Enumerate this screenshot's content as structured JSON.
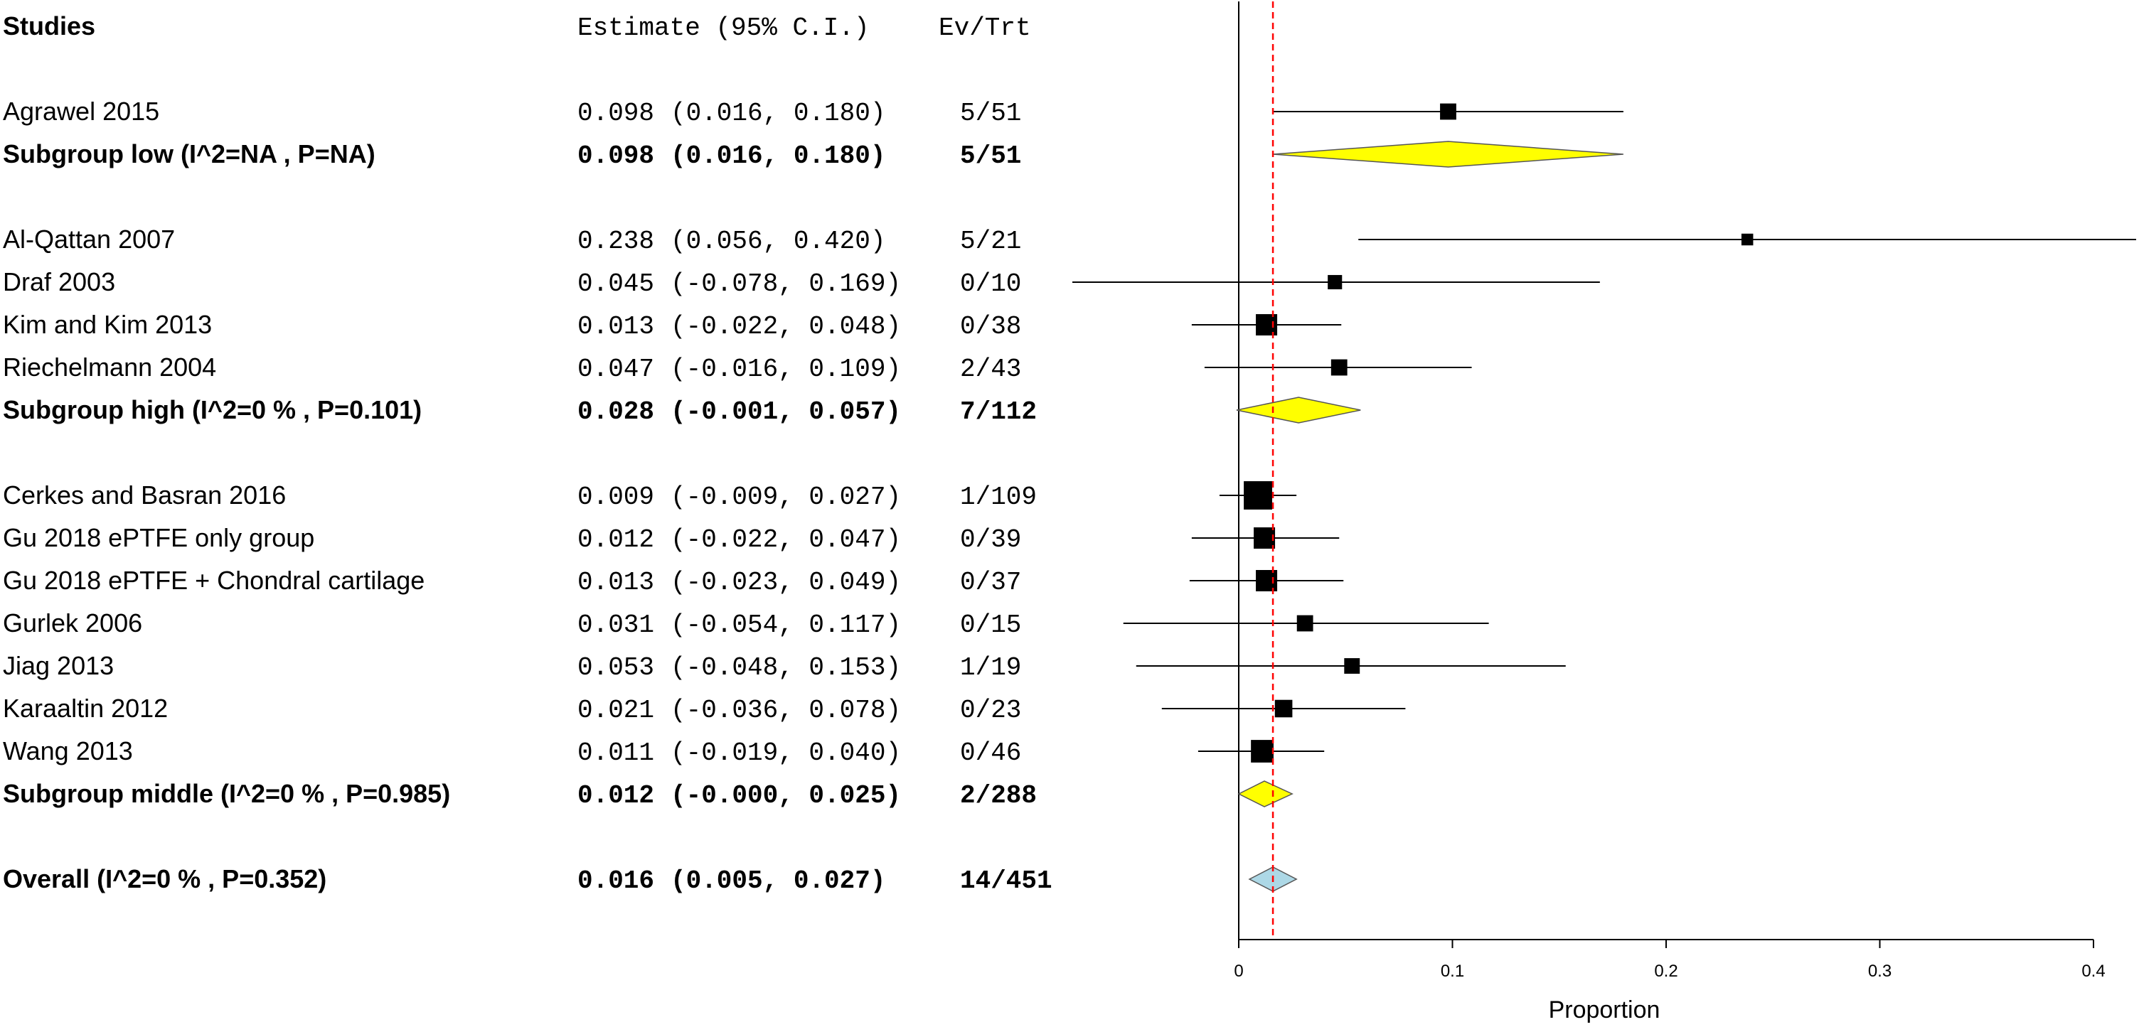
{
  "chart_data": {
    "type": "forest",
    "xlabel": "Proportion",
    "xlim": [
      0,
      0.4
    ],
    "x_ticks": [
      "0",
      "0.1",
      "0.2",
      "0.3",
      "0.4"
    ],
    "reference_line": 0.016,
    "headers": {
      "studies": "Studies",
      "estimate": "Estimate (95% C.I.)",
      "events": "Ev/Trt"
    },
    "rows": [
      {
        "kind": "study",
        "label": "Agrawel 2015",
        "est": 0.098,
        "lo": 0.016,
        "hi": 0.18,
        "est_text": "0.098",
        "ci_text": "(0.016, 0.180)",
        "ev_trt": "5/51",
        "weight": 0.6
      },
      {
        "kind": "subgroup",
        "label": "Subgroup low (I^2=NA , P=NA)",
        "est": 0.098,
        "lo": 0.016,
        "hi": 0.18,
        "est_text": "0.098",
        "ci_text": "(0.016, 0.180)",
        "ev_trt": "5/51"
      },
      {
        "kind": "blank"
      },
      {
        "kind": "study",
        "label": "Al-Qattan 2007",
        "est": 0.238,
        "lo": 0.056,
        "hi": 0.42,
        "est_text": "0.238",
        "ci_text": "(0.056, 0.420)",
        "ev_trt": "5/21",
        "weight": 0.25
      },
      {
        "kind": "study",
        "label": "Draf 2003",
        "est": 0.045,
        "lo": -0.078,
        "hi": 0.169,
        "est_text": "0.045",
        "ci_text": "(-0.078, 0.169)",
        "ev_trt": "0/10",
        "weight": 0.45
      },
      {
        "kind": "study",
        "label": "Kim and Kim 2013",
        "est": 0.013,
        "lo": -0.022,
        "hi": 0.048,
        "est_text": "0.013",
        "ci_text": "(-0.022, 0.048)",
        "ev_trt": "0/38",
        "weight": 1.0
      },
      {
        "kind": "study",
        "label": "Riechelmann 2004",
        "est": 0.047,
        "lo": -0.016,
        "hi": 0.109,
        "est_text": "0.047",
        "ci_text": "(-0.016, 0.109)",
        "ev_trt": "2/43",
        "weight": 0.6
      },
      {
        "kind": "subgroup",
        "label": "Subgroup high (I^2=0 % , P=0.101)",
        "est": 0.028,
        "lo": -0.001,
        "hi": 0.057,
        "est_text": "0.028",
        "ci_text": "(-0.001, 0.057)",
        "ev_trt": "7/112"
      },
      {
        "kind": "blank"
      },
      {
        "kind": "study",
        "label": "Cerkes and Basran 2016",
        "est": 0.009,
        "lo": -0.009,
        "hi": 0.027,
        "est_text": "0.009",
        "ci_text": "(-0.009, 0.027)",
        "ev_trt": "1/109",
        "weight": 1.55
      },
      {
        "kind": "study",
        "label": "Gu 2018 ePTFE only group",
        "est": 0.012,
        "lo": -0.022,
        "hi": 0.047,
        "est_text": "0.012",
        "ci_text": "(-0.022, 0.047)",
        "ev_trt": "0/39",
        "weight": 1.0
      },
      {
        "kind": "study",
        "label": "Gu 2018 ePTFE + Chondral cartilage",
        "est": 0.013,
        "lo": -0.023,
        "hi": 0.049,
        "est_text": "0.013",
        "ci_text": "(-0.023, 0.049)",
        "ev_trt": "0/37",
        "weight": 1.0
      },
      {
        "kind": "study",
        "label": "Gurlek 2006",
        "est": 0.031,
        "lo": -0.054,
        "hi": 0.117,
        "est_text": "0.031",
        "ci_text": "(-0.054, 0.117)",
        "ev_trt": "0/15",
        "weight": 0.6
      },
      {
        "kind": "study",
        "label": "Jiag 2013",
        "est": 0.053,
        "lo": -0.048,
        "hi": 0.153,
        "est_text": "0.053",
        "ci_text": "(-0.048, 0.153)",
        "ev_trt": "1/19",
        "weight": 0.55
      },
      {
        "kind": "study",
        "label": "Karaaltin 2012",
        "est": 0.021,
        "lo": -0.036,
        "hi": 0.078,
        "est_text": "0.021",
        "ci_text": "(-0.036, 0.078)",
        "ev_trt": "0/23",
        "weight": 0.7
      },
      {
        "kind": "study",
        "label": "Wang 2013",
        "est": 0.011,
        "lo": -0.019,
        "hi": 0.04,
        "est_text": "0.011",
        "ci_text": "(-0.019, 0.040)",
        "ev_trt": "0/46",
        "weight": 1.1
      },
      {
        "kind": "subgroup",
        "label": "Subgroup middle (I^2=0 % , P=0.985)",
        "est": 0.012,
        "lo": -0.0,
        "hi": 0.025,
        "est_text": "0.012",
        "ci_text": "(-0.000, 0.025)",
        "ev_trt": "2/288"
      },
      {
        "kind": "blank"
      },
      {
        "kind": "overall",
        "label": "Overall (I^2=0 % , P=0.352)",
        "est": 0.016,
        "lo": 0.005,
        "hi": 0.027,
        "est_text": "0.016",
        "ci_text": "(0.005, 0.027)",
        "ev_trt": "14/451"
      }
    ],
    "colors": {
      "subgroup_diamond": "#ffff00",
      "overall_diamond": "#add8e6",
      "reference_line": "#ff0000",
      "box": "#000000"
    }
  }
}
